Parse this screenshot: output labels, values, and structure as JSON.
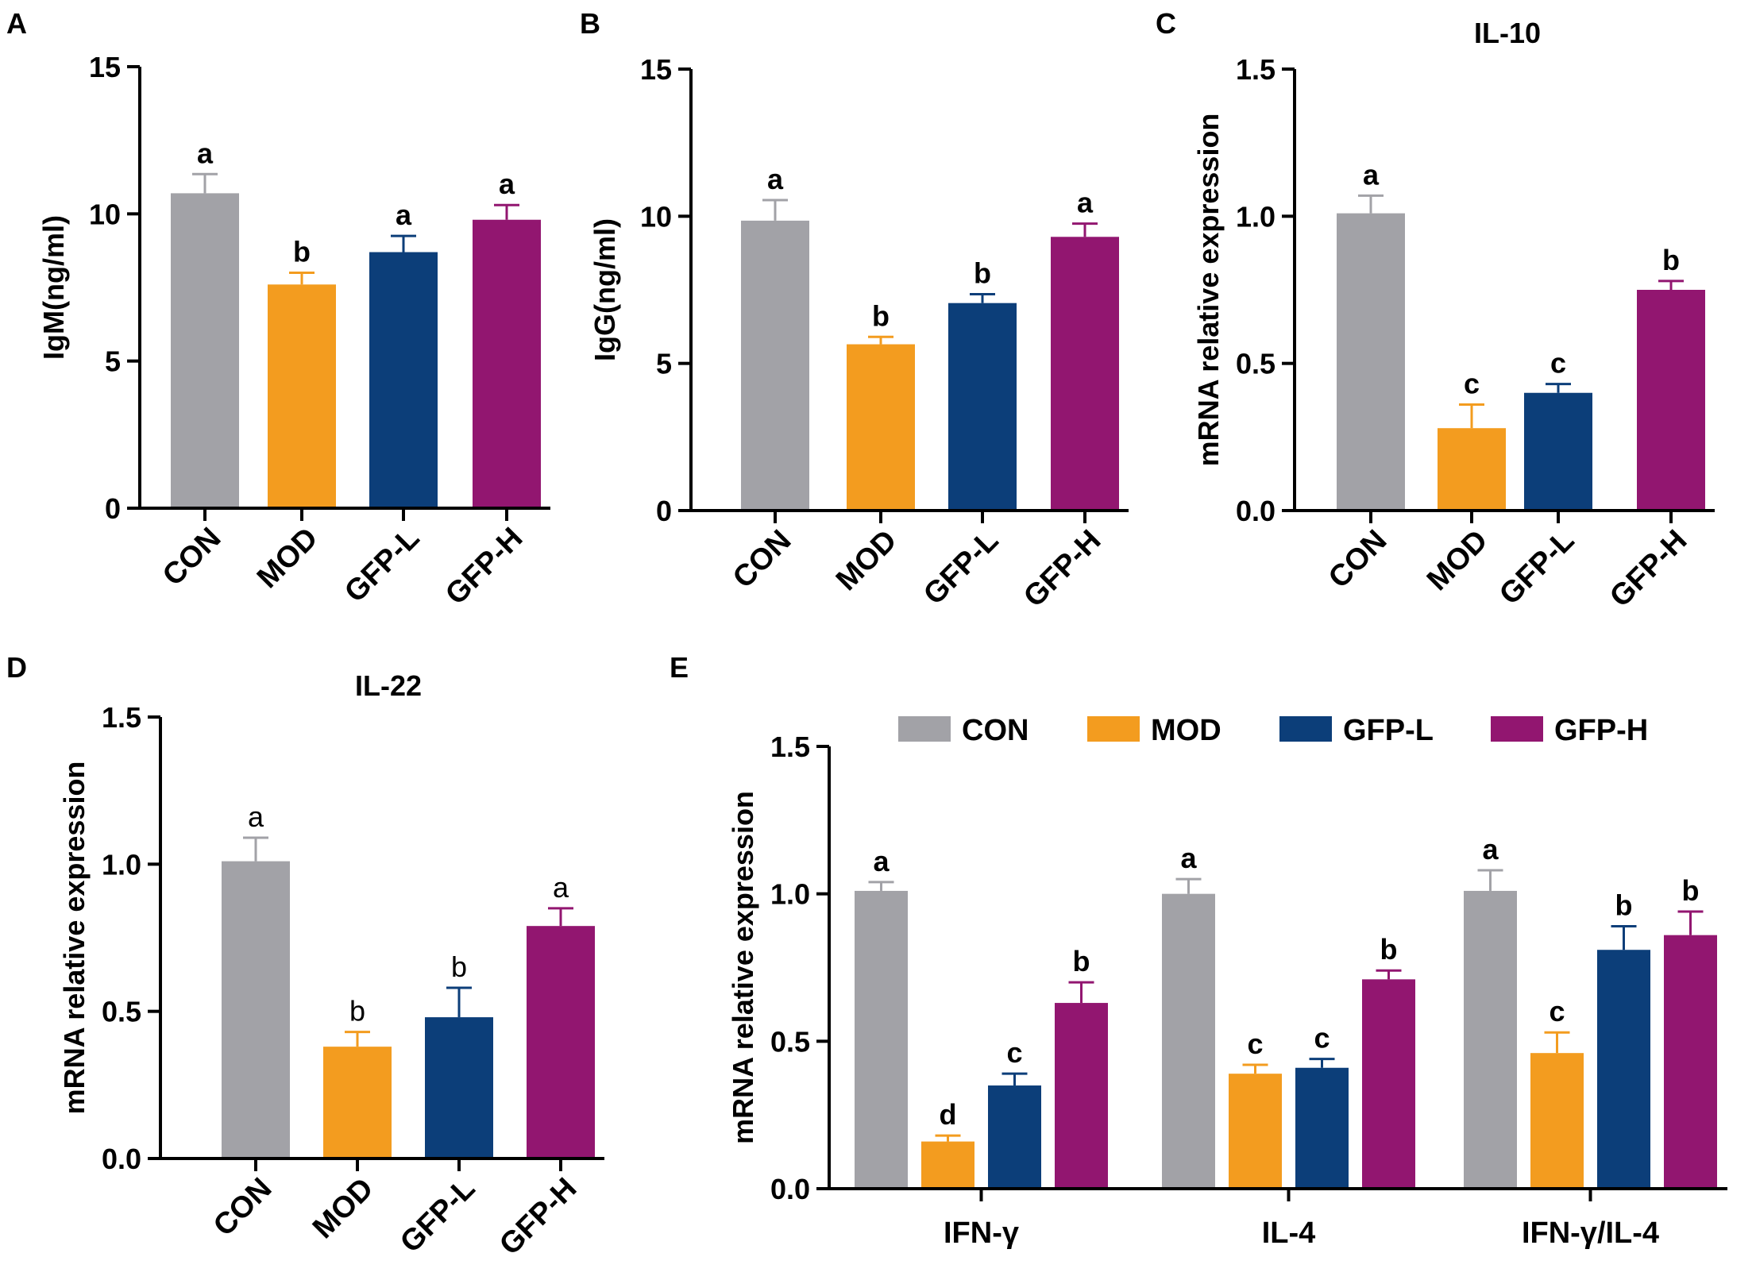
{
  "figure": {
    "colors": {
      "CON": "#A2A2A7",
      "MOD": "#F39C1F",
      "GFP-L": "#0C3E79",
      "GFP-H": "#921670"
    },
    "legend": [
      "CON",
      "MOD",
      "GFP-L",
      "GFP-H"
    ]
  },
  "chart_data": [
    {
      "panel": "A",
      "type": "bar",
      "title": "",
      "ylabel": "IgM(ng/ml)",
      "xlabel": "",
      "categories": [
        "CON",
        "MOD",
        "GFP-L",
        "GFP-H"
      ],
      "values": [
        10.7,
        7.6,
        8.7,
        9.8
      ],
      "errors": [
        0.65,
        0.4,
        0.55,
        0.5
      ],
      "letters": [
        "a",
        "b",
        "a",
        "a"
      ],
      "ylim": [
        0,
        15
      ],
      "yticks": [
        0,
        5,
        10,
        15
      ],
      "ytick_labels": [
        "0",
        "5",
        "10",
        "15"
      ],
      "grid": false,
      "letters_bold": true
    },
    {
      "panel": "B",
      "type": "bar",
      "title": "",
      "ylabel": "IgG(ng/ml)",
      "xlabel": "",
      "categories": [
        "CON",
        "MOD",
        "GFP-L",
        "GFP-H"
      ],
      "values": [
        9.85,
        5.65,
        7.05,
        9.3
      ],
      "errors": [
        0.7,
        0.25,
        0.3,
        0.45
      ],
      "letters": [
        "a",
        "b",
        "b",
        "a"
      ],
      "ylim": [
        0,
        15
      ],
      "yticks": [
        0,
        5,
        10,
        15
      ],
      "ytick_labels": [
        "0",
        "5",
        "10",
        "15"
      ],
      "grid": false,
      "letters_bold": true
    },
    {
      "panel": "C",
      "type": "bar",
      "title": "IL-10",
      "ylabel": "mRNA relative expression",
      "xlabel": "",
      "categories": [
        "CON",
        "MOD",
        "GFP-L",
        "GFP-H"
      ],
      "values": [
        1.01,
        0.28,
        0.4,
        0.75
      ],
      "errors": [
        0.06,
        0.08,
        0.03,
        0.03
      ],
      "letters": [
        "a",
        "c",
        "c",
        "b"
      ],
      "ylim": [
        0,
        1.5
      ],
      "yticks": [
        0,
        0.5,
        1.0,
        1.5
      ],
      "ytick_labels": [
        "0.0",
        "0.5",
        "1.0",
        "1.5"
      ],
      "grid": false,
      "letters_bold": true
    },
    {
      "panel": "D",
      "type": "bar",
      "title": "IL-22",
      "ylabel": "mRNA relative expression",
      "xlabel": "",
      "categories": [
        "CON",
        "MOD",
        "GFP-L",
        "GFP-H"
      ],
      "values": [
        1.01,
        0.38,
        0.48,
        0.79
      ],
      "errors": [
        0.08,
        0.05,
        0.1,
        0.06
      ],
      "letters": [
        "a",
        "b",
        "b",
        "a"
      ],
      "ylim": [
        0,
        1.5
      ],
      "yticks": [
        0,
        0.5,
        1.0,
        1.5
      ],
      "ytick_labels": [
        "0.0",
        "0.5",
        "1.0",
        "1.5"
      ],
      "grid": false,
      "letters_bold": false
    },
    {
      "panel": "E",
      "type": "bar",
      "title": "",
      "ylabel": "mRNA relative expression",
      "xlabel": "",
      "groups": [
        "IFN-γ",
        "IL-4",
        "IFN-γ/IL-4"
      ],
      "series": [
        {
          "name": "CON",
          "values": [
            1.01,
            1.0,
            1.01
          ],
          "errors": [
            0.03,
            0.05,
            0.07
          ],
          "letters": [
            "a",
            "a",
            "a"
          ]
        },
        {
          "name": "MOD",
          "values": [
            0.16,
            0.39,
            0.46
          ],
          "errors": [
            0.02,
            0.03,
            0.07
          ],
          "letters": [
            "d",
            "c",
            "c"
          ]
        },
        {
          "name": "GFP-L",
          "values": [
            0.35,
            0.41,
            0.81
          ],
          "errors": [
            0.04,
            0.03,
            0.08
          ],
          "letters": [
            "c",
            "c",
            "b"
          ]
        },
        {
          "name": "GFP-H",
          "values": [
            0.63,
            0.71,
            0.86
          ],
          "errors": [
            0.07,
            0.03,
            0.08
          ],
          "letters": [
            "b",
            "b",
            "b"
          ]
        }
      ],
      "ylim": [
        0,
        1.5
      ],
      "yticks": [
        0,
        0.5,
        1.0,
        1.5
      ],
      "ytick_labels": [
        "0.0",
        "0.5",
        "1.0",
        "1.5"
      ],
      "grid": false,
      "letters_bold": true,
      "legend_position": "top"
    }
  ]
}
